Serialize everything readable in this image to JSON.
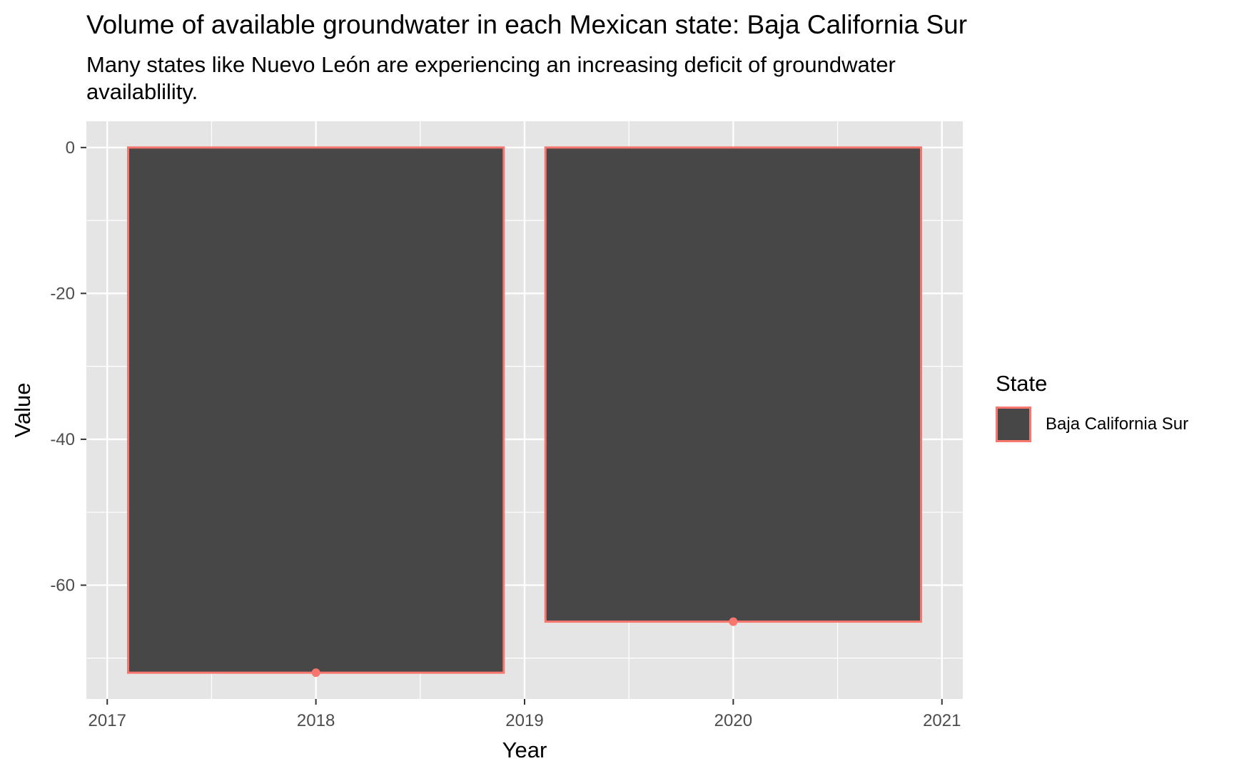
{
  "chart_data": {
    "type": "bar",
    "title": "Volume of available groundwater in each Mexican state: Baja California Sur",
    "subtitle": "Many states like Nuevo León are experiencing an increasing deficit of groundwater availablility.",
    "xlabel": "Year",
    "ylabel": "Value",
    "x": [
      2018,
      2020
    ],
    "series": [
      {
        "name": "Baja California Sur",
        "values": [
          -72,
          -65
        ]
      }
    ],
    "bar_width_years": 1.8,
    "xlim": [
      2016.9,
      2021.1
    ],
    "ylim": [
      -75.6,
      3.6
    ],
    "xticks": [
      2017,
      2018,
      2019,
      2020,
      2021
    ],
    "yticks": [
      0,
      -20,
      -40,
      -60
    ],
    "grid": true,
    "legend": {
      "title": "State",
      "position": "right"
    },
    "colors": {
      "fill": "#474747",
      "outline": "#F8766D",
      "panel": "#E5E5E5",
      "grid": "#FFFFFF",
      "point": "#F8766D"
    }
  }
}
